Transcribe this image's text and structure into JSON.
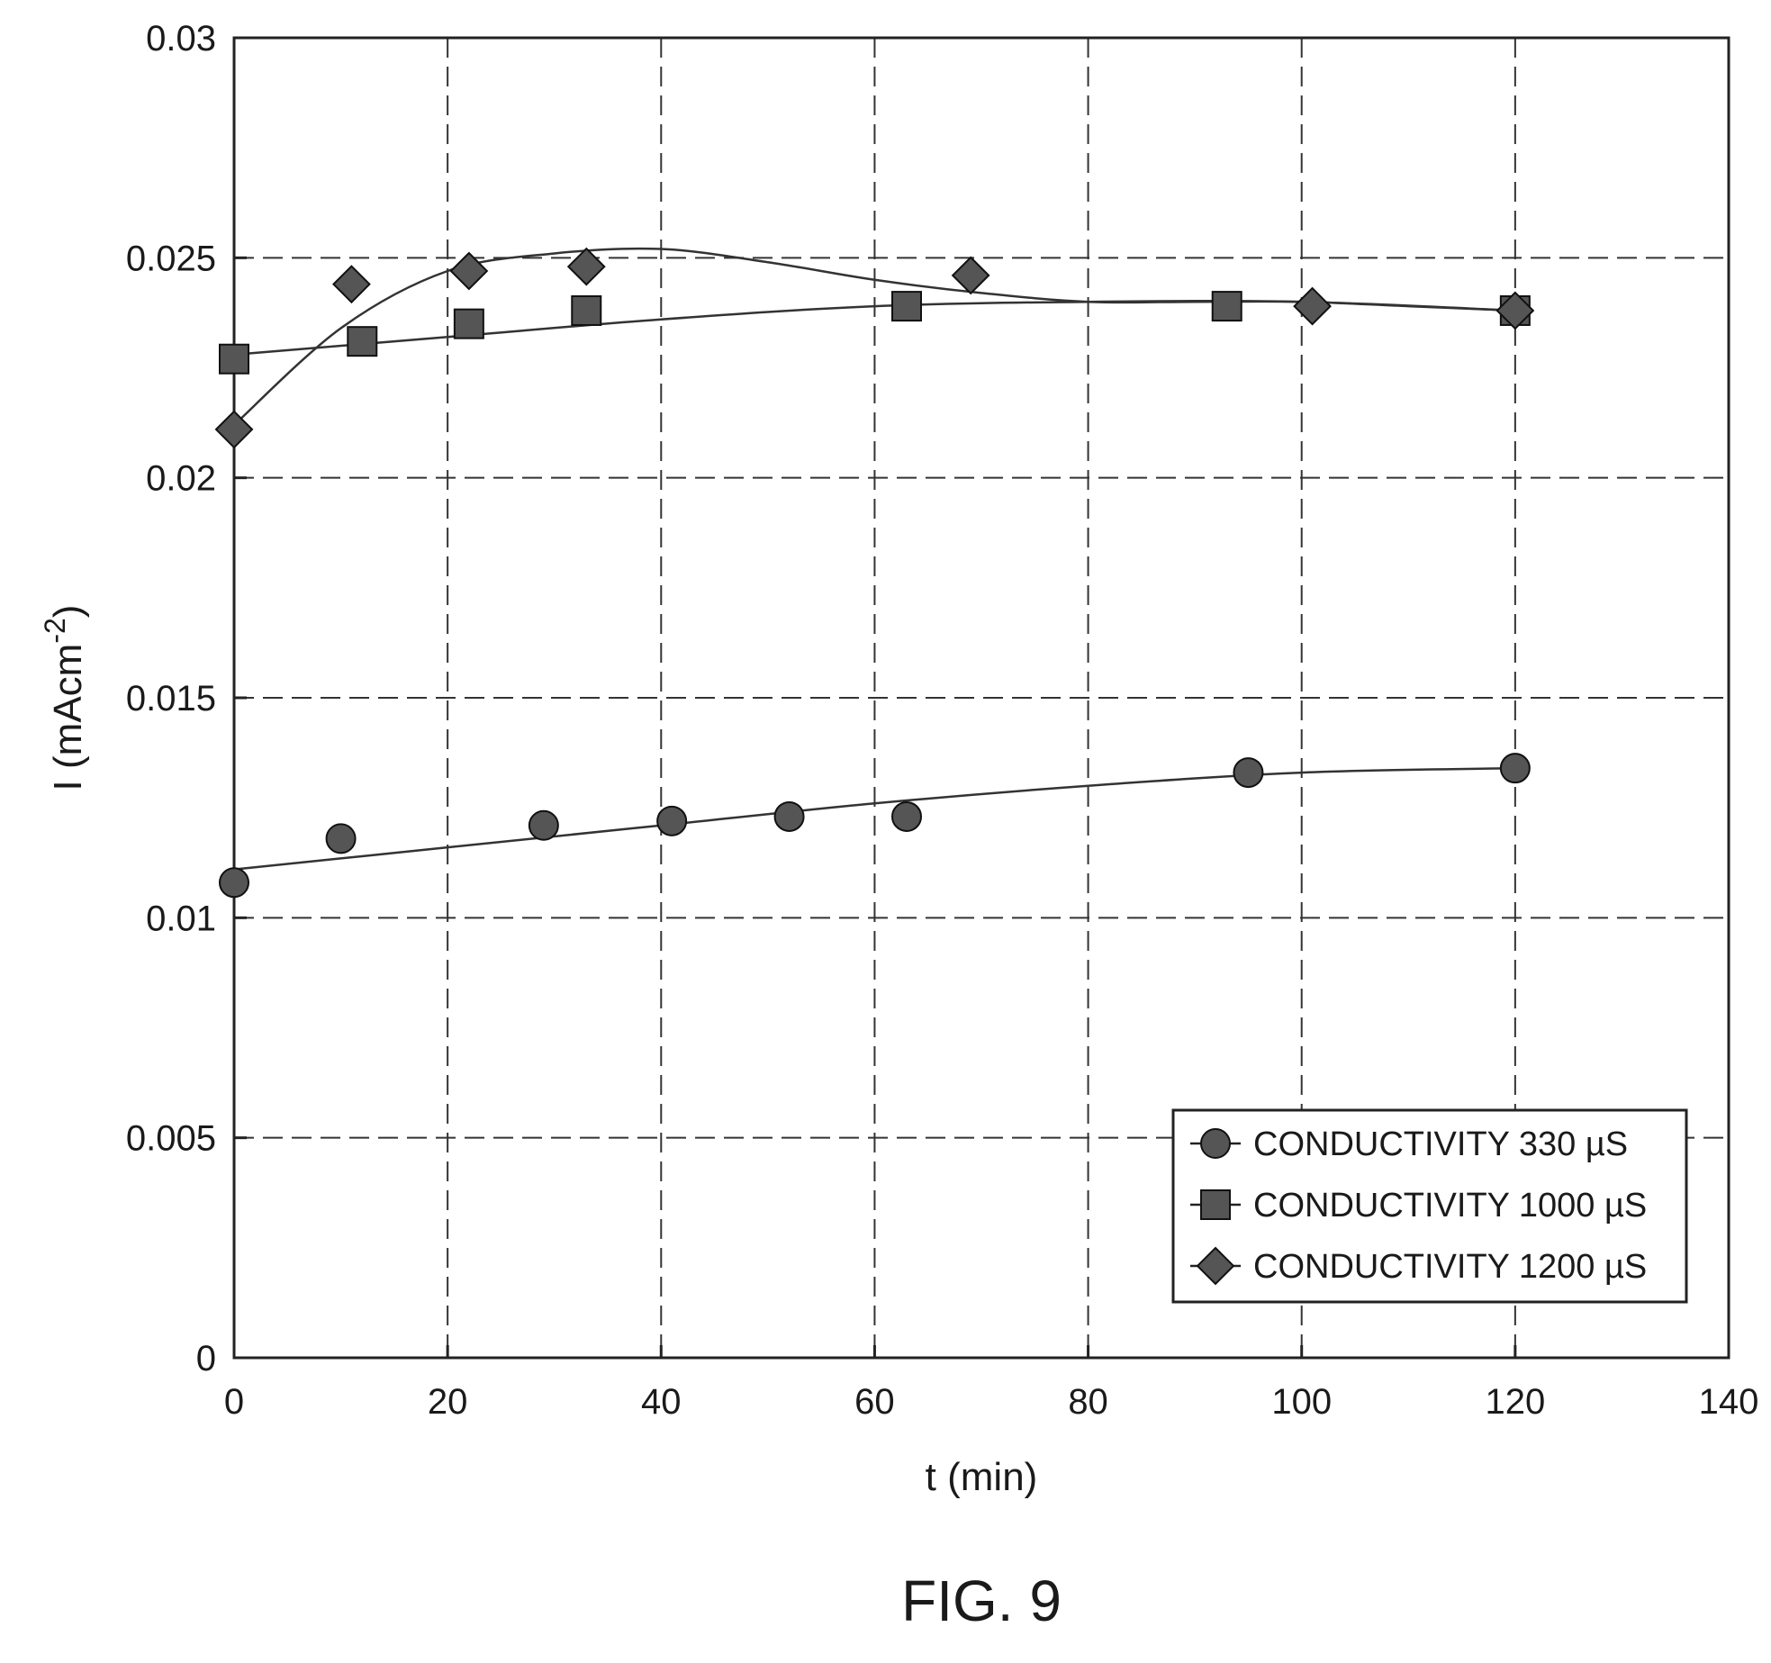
{
  "figure_caption": "FIG. 9",
  "chart_data": {
    "type": "scatter",
    "title": "",
    "xlabel": "t (min)",
    "ylabel": "I (mAcm-2)",
    "xlim": [
      0,
      140
    ],
    "ylim": [
      0,
      0.03
    ],
    "x_ticks": [
      "0",
      "20",
      "40",
      "60",
      "80",
      "100",
      "120",
      "140"
    ],
    "y_ticks": [
      "0",
      "0.005",
      "0.01",
      "0.015",
      "0.02",
      "0.025",
      "0.03"
    ],
    "grid": true,
    "legend_position": "bottom-right",
    "series": [
      {
        "name": "CONDUCTIVITY 330 µS",
        "marker": "circle",
        "points": [
          [
            0,
            0.0108
          ],
          [
            10,
            0.0118
          ],
          [
            29,
            0.0121
          ],
          [
            41,
            0.0122
          ],
          [
            52,
            0.0123
          ],
          [
            63,
            0.0123
          ],
          [
            95,
            0.0133
          ],
          [
            120,
            0.0134
          ]
        ],
        "trend": [
          [
            0,
            0.0111
          ],
          [
            20,
            0.0116
          ],
          [
            40,
            0.0121
          ],
          [
            60,
            0.0126
          ],
          [
            80,
            0.013
          ],
          [
            100,
            0.0133
          ],
          [
            120,
            0.0134
          ]
        ]
      },
      {
        "name": "CONDUCTIVITY 1000 µS",
        "marker": "square",
        "points": [
          [
            0,
            0.0227
          ],
          [
            12,
            0.0231
          ],
          [
            22,
            0.0235
          ],
          [
            33,
            0.0238
          ],
          [
            63,
            0.0239
          ],
          [
            93,
            0.0239
          ],
          [
            120,
            0.0238
          ]
        ],
        "trend": [
          [
            0,
            0.0228
          ],
          [
            20,
            0.0232
          ],
          [
            40,
            0.0236
          ],
          [
            60,
            0.0239
          ],
          [
            80,
            0.024
          ],
          [
            100,
            0.024
          ],
          [
            120,
            0.0238
          ]
        ]
      },
      {
        "name": "CONDUCTIVITY 1200 µS",
        "marker": "diamond",
        "points": [
          [
            0,
            0.0211
          ],
          [
            11,
            0.0244
          ],
          [
            22,
            0.0247
          ],
          [
            33,
            0.0248
          ],
          [
            69,
            0.0246
          ],
          [
            101,
            0.0239
          ],
          [
            120,
            0.0238
          ]
        ],
        "trend": [
          [
            0,
            0.0212
          ],
          [
            10,
            0.0234
          ],
          [
            20,
            0.0247
          ],
          [
            30,
            0.0251
          ],
          [
            40,
            0.0252
          ],
          [
            50,
            0.0249
          ],
          [
            60,
            0.0245
          ],
          [
            70,
            0.0242
          ],
          [
            80,
            0.024
          ],
          [
            90,
            0.024
          ],
          [
            100,
            0.024
          ],
          [
            110,
            0.0239
          ],
          [
            120,
            0.0238
          ]
        ]
      }
    ]
  }
}
